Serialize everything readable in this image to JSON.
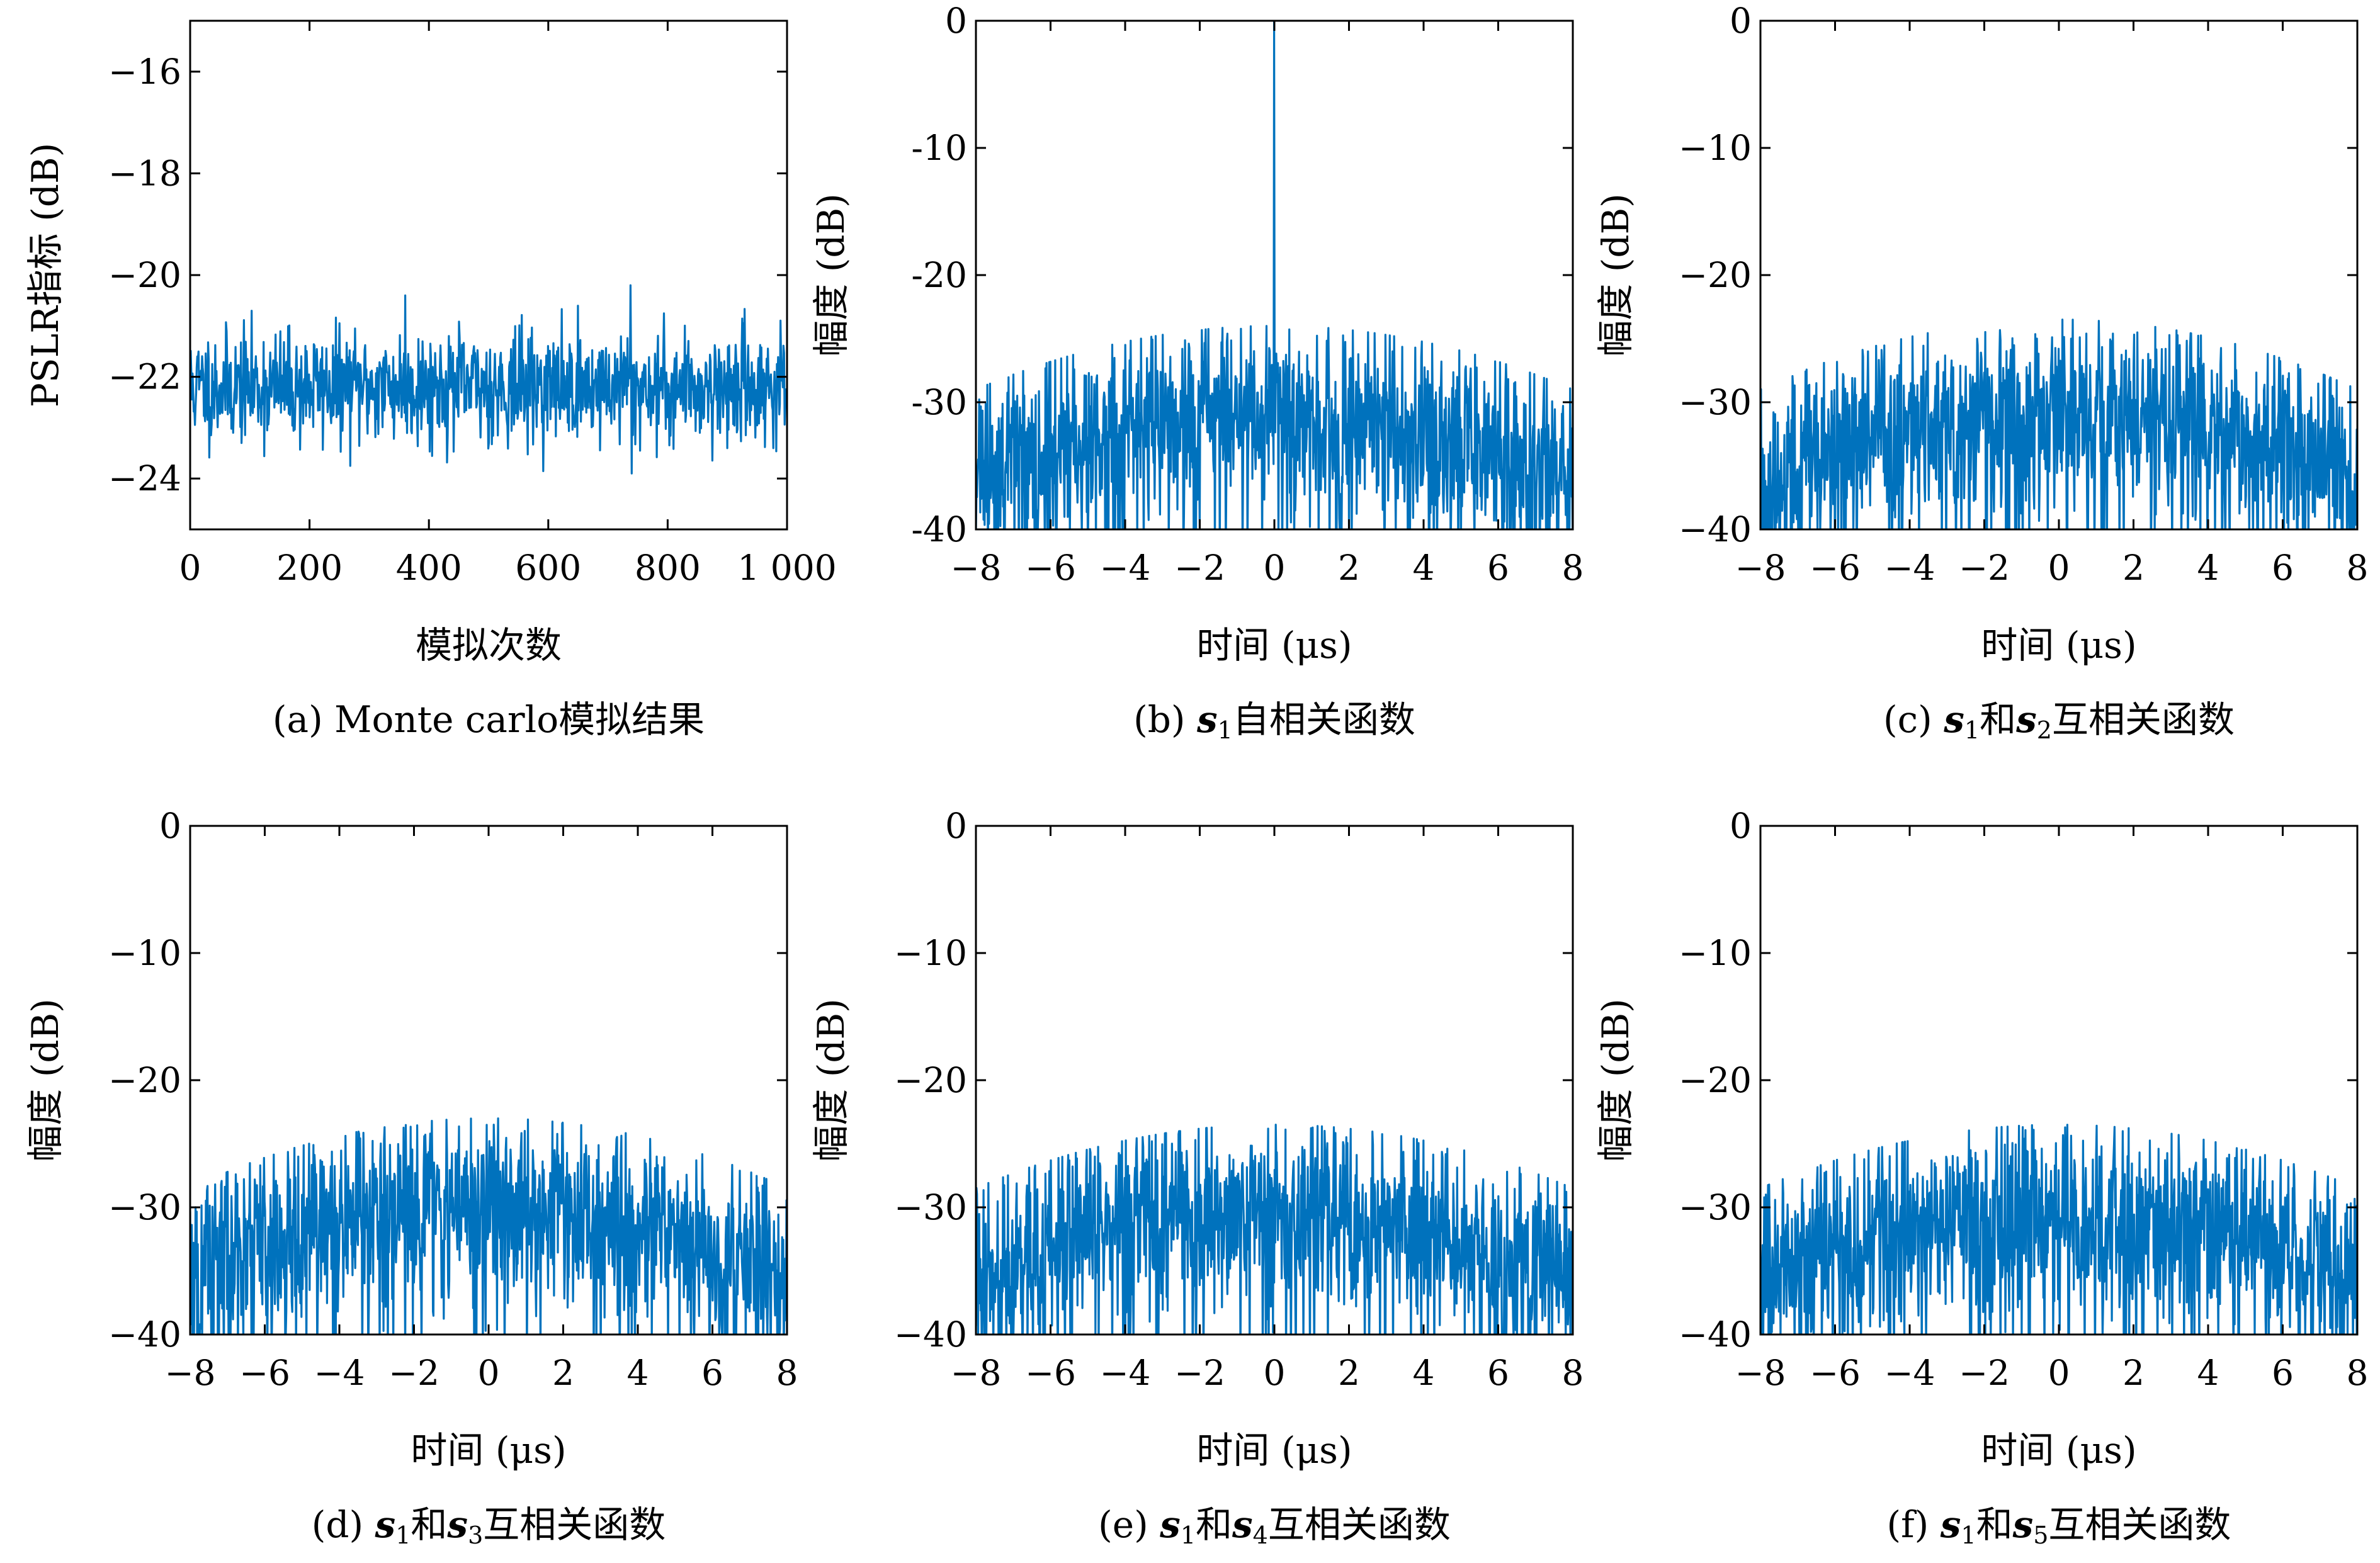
{
  "chart_data": [
    {
      "id": "a",
      "type": "line",
      "caption": "(a) Monte carlo模拟结果",
      "caption_parts": [
        {
          "t": "(a) Monte carlo模拟结果"
        }
      ],
      "xlabel": "模拟次数",
      "ylabel": "PSLR指标 (dB)",
      "xlim": [
        0,
        1000
      ],
      "ylim": [
        -25,
        -15
      ],
      "xticks": [
        0,
        200,
        400,
        600,
        800,
        1000
      ],
      "xtick_labels": [
        "0",
        "200",
        "400",
        "600",
        "800",
        "1 000"
      ],
      "yticks": [
        -16,
        -18,
        -20,
        -22,
        -24
      ],
      "ytick_labels": [
        "−16",
        "−18",
        "−20",
        "−22",
        "−24"
      ],
      "series_color": "#0072BD",
      "series": [
        {
          "generator": "noise",
          "n": 1000,
          "seed": 11,
          "mean": -22.2,
          "spread": 0.55,
          "min": -23.9,
          "max": -20.2,
          "peaks": [
            [
              360,
              -20.4
            ],
            [
              738,
              -20.2
            ],
            [
              740,
              -23.9
            ]
          ]
        }
      ]
    },
    {
      "id": "b",
      "type": "line",
      "caption": "(b) s1自相关函数",
      "caption_parts": [
        {
          "t": "(b) "
        },
        {
          "t": "s",
          "b": true
        },
        {
          "t": "1",
          "sub": true
        },
        {
          "t": "自相关函数"
        }
      ],
      "xlabel": "时间 (μs)",
      "ylabel": "幅度 (dB)",
      "xlim": [
        -8,
        8
      ],
      "ylim": [
        -40,
        0
      ],
      "xticks": [
        -8,
        -6,
        -4,
        -2,
        0,
        2,
        4,
        6,
        8
      ],
      "xtick_labels": [
        "−8",
        "−6",
        "−4",
        "−2",
        "0",
        "2",
        "4",
        "6",
        "8"
      ],
      "yticks": [
        0,
        -10,
        -20,
        -30,
        -40
      ],
      "ytick_labels": [
        "0",
        "-10",
        "-20",
        "-30",
        "-40"
      ],
      "series_color": "#0072BD",
      "series": [
        {
          "generator": "correlation",
          "n": 1100,
          "seed": 23,
          "envelope_center": -31,
          "envelope_edge": -36,
          "spread": 3.8,
          "floor": -40,
          "peak_x": 0,
          "peak_y": 0
        }
      ]
    },
    {
      "id": "c",
      "type": "line",
      "caption": "(c) s1和s2互相关函数",
      "caption_parts": [
        {
          "t": "(c) "
        },
        {
          "t": "s",
          "b": true
        },
        {
          "t": "1",
          "sub": true
        },
        {
          "t": "和"
        },
        {
          "t": "s",
          "b": true
        },
        {
          "t": "2",
          "sub": true
        },
        {
          "t": "互相关函数"
        }
      ],
      "xlabel": "时间 (μs)",
      "ylabel": "幅度 (dB)",
      "xlim": [
        -8,
        8
      ],
      "ylim": [
        -40,
        0
      ],
      "xticks": [
        -8,
        -6,
        -4,
        -2,
        0,
        2,
        4,
        6,
        8
      ],
      "xtick_labels": [
        "−8",
        "−6",
        "−4",
        "−2",
        "0",
        "2",
        "4",
        "6",
        "8"
      ],
      "yticks": [
        0,
        -10,
        -20,
        -30,
        -40
      ],
      "ytick_labels": [
        "0",
        "−10",
        "−20",
        "−30",
        "−40"
      ],
      "series_color": "#0072BD",
      "series": [
        {
          "generator": "correlation",
          "n": 1100,
          "seed": 37,
          "envelope_center": -30.5,
          "envelope_edge": -36,
          "spread": 3.8,
          "floor": -40
        }
      ]
    },
    {
      "id": "d",
      "type": "line",
      "caption": "(d) s1和s3互相关函数",
      "caption_parts": [
        {
          "t": "(d) "
        },
        {
          "t": "s",
          "b": true
        },
        {
          "t": "1",
          "sub": true
        },
        {
          "t": "和"
        },
        {
          "t": "s",
          "b": true
        },
        {
          "t": "3",
          "sub": true
        },
        {
          "t": "互相关函数"
        }
      ],
      "xlabel": "时间 (μs)",
      "ylabel": "幅度 (dB)",
      "xlim": [
        -8,
        8
      ],
      "ylim": [
        -40,
        0
      ],
      "xticks": [
        -8,
        -6,
        -4,
        -2,
        0,
        2,
        4,
        6,
        8
      ],
      "xtick_labels": [
        "−8",
        "−6",
        "−4",
        "−2",
        "0",
        "2",
        "4",
        "6",
        "8"
      ],
      "yticks": [
        0,
        -10,
        -20,
        -30,
        -40
      ],
      "ytick_labels": [
        "0",
        "−10",
        "−20",
        "−30",
        "−40"
      ],
      "series_color": "#0072BD",
      "series": [
        {
          "generator": "correlation",
          "n": 1100,
          "seed": 51,
          "envelope_center": -30,
          "envelope_edge": -35.5,
          "spread": 3.8,
          "floor": -40
        }
      ]
    },
    {
      "id": "e",
      "type": "line",
      "caption": "(e) s1和s4互相关函数",
      "caption_parts": [
        {
          "t": "(e) "
        },
        {
          "t": "s",
          "b": true
        },
        {
          "t": "1",
          "sub": true
        },
        {
          "t": "和"
        },
        {
          "t": "s",
          "b": true
        },
        {
          "t": "4",
          "sub": true
        },
        {
          "t": "互相关函数"
        }
      ],
      "xlabel": "时间 (μs)",
      "ylabel": "幅度 (dB)",
      "xlim": [
        -8,
        8
      ],
      "ylim": [
        -40,
        0
      ],
      "xticks": [
        -8,
        -6,
        -4,
        -2,
        0,
        2,
        4,
        6,
        8
      ],
      "xtick_labels": [
        "−8",
        "−6",
        "−4",
        "−2",
        "0",
        "2",
        "4",
        "6",
        "8"
      ],
      "yticks": [
        0,
        -10,
        -20,
        -30,
        -40
      ],
      "ytick_labels": [
        "0",
        "−10",
        "−20",
        "−30",
        "−40"
      ],
      "series_color": "#0072BD",
      "series": [
        {
          "generator": "correlation",
          "n": 1100,
          "seed": 67,
          "envelope_center": -30.5,
          "envelope_edge": -35.5,
          "spread": 3.8,
          "floor": -40
        }
      ]
    },
    {
      "id": "f",
      "type": "line",
      "caption": "(f) s1和s5互相关函数",
      "caption_parts": [
        {
          "t": "(f) "
        },
        {
          "t": "s",
          "b": true
        },
        {
          "t": "1",
          "sub": true
        },
        {
          "t": "和"
        },
        {
          "t": "s",
          "b": true
        },
        {
          "t": "5",
          "sub": true
        },
        {
          "t": "互相关函数"
        }
      ],
      "xlabel": "时间 (μs)",
      "ylabel": "幅度 (dB)",
      "xlim": [
        -8,
        8
      ],
      "ylim": [
        -40,
        0
      ],
      "xticks": [
        -8,
        -6,
        -4,
        -2,
        0,
        2,
        4,
        6,
        8
      ],
      "xtick_labels": [
        "−8",
        "−6",
        "−4",
        "−2",
        "0",
        "2",
        "4",
        "6",
        "8"
      ],
      "yticks": [
        0,
        -10,
        -20,
        -30,
        -40
      ],
      "ytick_labels": [
        "0",
        "−10",
        "−20",
        "−30",
        "−40"
      ],
      "series_color": "#0072BD",
      "series": [
        {
          "generator": "correlation",
          "n": 1100,
          "seed": 83,
          "envelope_center": -30.5,
          "envelope_edge": -35.5,
          "spread": 3.8,
          "floor": -40
        }
      ]
    }
  ]
}
